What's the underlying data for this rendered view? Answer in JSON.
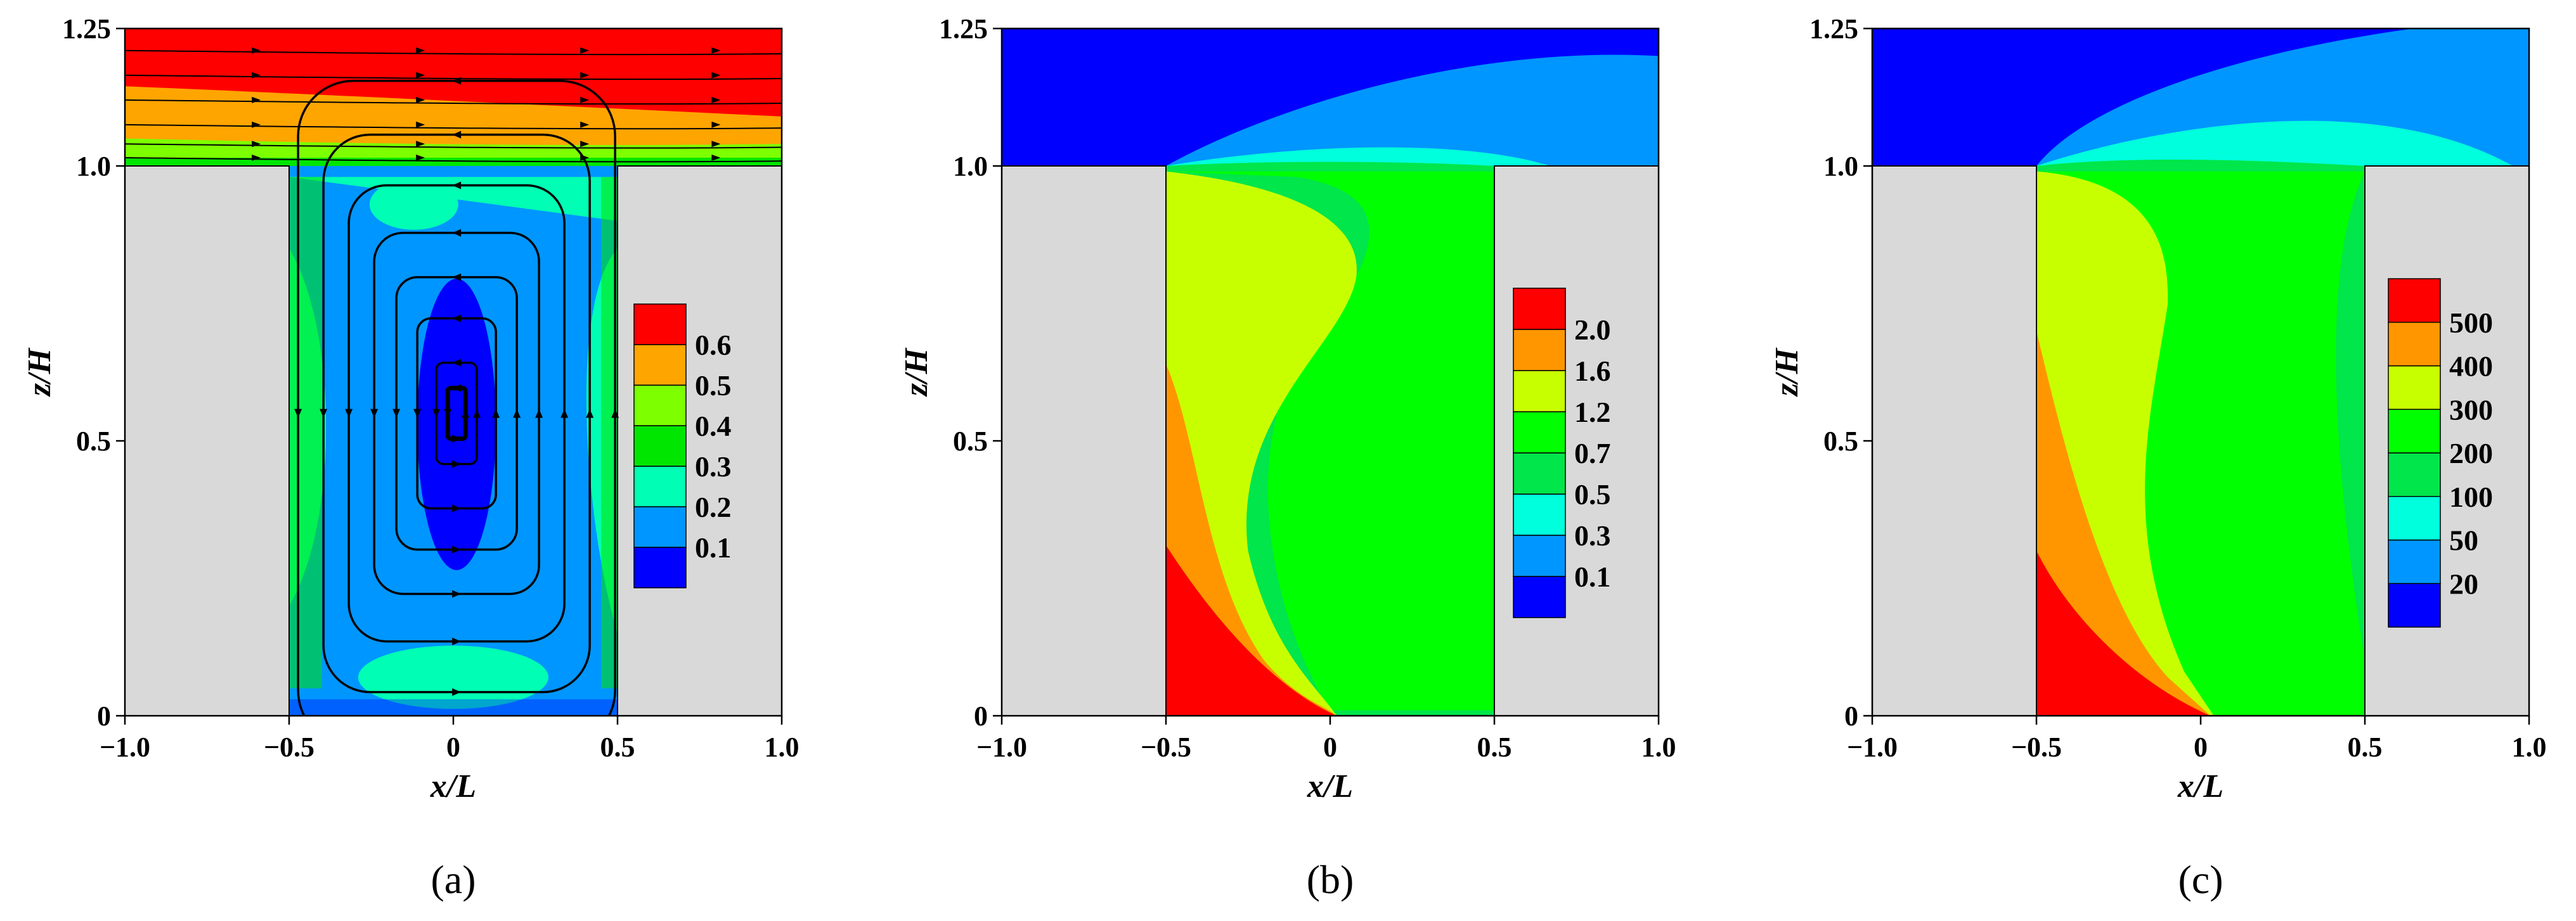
{
  "figure": {
    "panels": [
      {
        "label": "(a)"
      },
      {
        "label": "(b)"
      },
      {
        "label": "(c)"
      }
    ]
  },
  "chart_data": [
    {
      "type": "heatmap",
      "panel": "(a)",
      "xlabel": "x/L",
      "ylabel": "z/H",
      "xlim": [
        -1.0,
        1.0
      ],
      "ylim": [
        0,
        1.25
      ],
      "x_ticks": [
        "−1.0",
        "−0.5",
        "0",
        "0.5",
        "1.0"
      ],
      "y_ticks": [
        "0",
        "0.5",
        "1.0",
        "1.25"
      ],
      "legend_position": "inside-right",
      "legend_levels": [
        "0.1",
        "0.2",
        "0.3",
        "0.4",
        "0.5",
        "0.6"
      ],
      "legend_colors": [
        "#0000ff",
        "#0096ff",
        "#00ffb4",
        "#00e600",
        "#7dff00",
        "#ffa500",
        "#ff0000"
      ],
      "streamlines": true,
      "geometry_color": "#d9d9d9"
    },
    {
      "type": "heatmap",
      "panel": "(b)",
      "xlabel": "x/L",
      "ylabel": "z/H",
      "xlim": [
        -1.0,
        1.0
      ],
      "ylim": [
        0,
        1.25
      ],
      "x_ticks": [
        "−1.0",
        "−0.5",
        "0",
        "0.5",
        "1.0"
      ],
      "y_ticks": [
        "0",
        "0.5",
        "1.0",
        "1.25"
      ],
      "legend_position": "inside-right",
      "legend_levels": [
        "0.1",
        "0.3",
        "0.5",
        "0.7",
        "1.2",
        "1.6",
        "2.0"
      ],
      "legend_colors": [
        "#0000ff",
        "#0096ff",
        "#00ffdc",
        "#00e64b",
        "#00ff00",
        "#c8ff00",
        "#ff9600",
        "#ff0000"
      ],
      "streamlines": false,
      "geometry_color": "#d9d9d9"
    },
    {
      "type": "heatmap",
      "panel": "(c)",
      "xlabel": "x/L",
      "ylabel": "z/H",
      "xlim": [
        -1.0,
        1.0
      ],
      "ylim": [
        0,
        1.25
      ],
      "x_ticks": [
        "−1.0",
        "−0.5",
        "0",
        "0.5",
        "1.0"
      ],
      "y_ticks": [
        "0",
        "0.5",
        "1.0",
        "1.25"
      ],
      "legend_position": "inside-right",
      "legend_levels": [
        "20",
        "50",
        "100",
        "200",
        "300",
        "400",
        "500"
      ],
      "legend_colors": [
        "#0000ff",
        "#0096ff",
        "#00ffdc",
        "#00e64b",
        "#00ff00",
        "#c8ff00",
        "#ff9600",
        "#ff0000"
      ],
      "streamlines": false,
      "geometry_color": "#d9d9d9"
    }
  ]
}
